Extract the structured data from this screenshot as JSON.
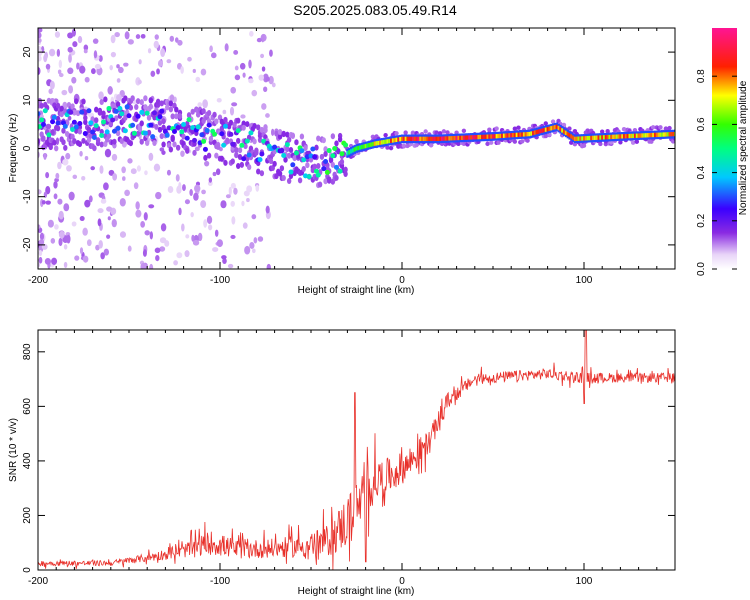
{
  "title": "S205.2025.083.05.49.R14",
  "colors": {
    "snr_line": "#e8302a",
    "axis": "#000000"
  },
  "chart_data": [
    {
      "type": "heatmap",
      "xlabel": "Height of straight line (km)",
      "ylabel": "Frequency (Hz)",
      "xlim": [
        -200,
        150
      ],
      "ylim": [
        -25,
        25
      ],
      "x_ticks": [
        -200,
        -100,
        0,
        100
      ],
      "y_ticks": [
        -20,
        -10,
        0,
        10,
        20
      ],
      "colorbar": {
        "label": "Normalized spectral amplitude",
        "range": [
          0,
          1
        ],
        "ticks": [
          "0.0",
          "0.2",
          "0.4",
          "0.6",
          "0.8"
        ],
        "tick_values": [
          0,
          0.2,
          0.4,
          0.6,
          0.8
        ],
        "colormap": "rainbow-white-purple-blue-cyan-green-yellow-red-magenta"
      },
      "ridge": [
        {
          "x": -195,
          "f": 5,
          "a": 0.35
        },
        {
          "x": -170,
          "f": 5,
          "a": 0.35
        },
        {
          "x": -150,
          "f": 6,
          "a": 0.4
        },
        {
          "x": -130,
          "f": 5,
          "a": 0.4
        },
        {
          "x": -110,
          "f": 3,
          "a": 0.4
        },
        {
          "x": -90,
          "f": 1,
          "a": 0.4
        },
        {
          "x": -70,
          "f": -1,
          "a": 0.35
        },
        {
          "x": -50,
          "f": -3,
          "a": 0.45
        },
        {
          "x": -35,
          "f": -2,
          "a": 0.45
        },
        {
          "x": -25,
          "f": 0,
          "a": 0.55
        },
        {
          "x": -15,
          "f": 1,
          "a": 0.7
        },
        {
          "x": 0,
          "f": 2,
          "a": 0.85
        },
        {
          "x": 20,
          "f": 2,
          "a": 0.9
        },
        {
          "x": 50,
          "f": 2.5,
          "a": 0.85
        },
        {
          "x": 70,
          "f": 3,
          "a": 0.8
        },
        {
          "x": 85,
          "f": 4.5,
          "a": 0.85
        },
        {
          "x": 95,
          "f": 2,
          "a": 0.75
        },
        {
          "x": 120,
          "f": 2.5,
          "a": 0.8
        },
        {
          "x": 150,
          "f": 3,
          "a": 0.75
        }
      ]
    },
    {
      "type": "line",
      "xlabel": "Height of straight line (km)",
      "ylabel": "SNR (10 * v/v)",
      "xlim": [
        -200,
        150
      ],
      "ylim": [
        0,
        880
      ],
      "x_ticks": [
        -200,
        -100,
        0,
        100
      ],
      "y_ticks": [
        0,
        200,
        400,
        600,
        800
      ],
      "envelope": [
        {
          "x": -200,
          "mean": 25,
          "spread": 20
        },
        {
          "x": -160,
          "mean": 25,
          "spread": 20
        },
        {
          "x": -140,
          "mean": 45,
          "spread": 30
        },
        {
          "x": -120,
          "mean": 70,
          "spread": 50
        },
        {
          "x": -105,
          "mean": 100,
          "spread": 90
        },
        {
          "x": -90,
          "mean": 75,
          "spread": 70
        },
        {
          "x": -70,
          "mean": 80,
          "spread": 70
        },
        {
          "x": -50,
          "mean": 90,
          "spread": 90
        },
        {
          "x": -40,
          "mean": 110,
          "spread": 120
        },
        {
          "x": -30,
          "mean": 180,
          "spread": 200
        },
        {
          "x": -22,
          "mean": 250,
          "spread": 200
        },
        {
          "x": -15,
          "mean": 330,
          "spread": 160
        },
        {
          "x": -5,
          "mean": 350,
          "spread": 120
        },
        {
          "x": 5,
          "mean": 400,
          "spread": 120
        },
        {
          "x": 15,
          "mean": 470,
          "spread": 90
        },
        {
          "x": 25,
          "mean": 620,
          "spread": 60
        },
        {
          "x": 40,
          "mean": 700,
          "spread": 40
        },
        {
          "x": 60,
          "mean": 710,
          "spread": 40
        },
        {
          "x": 80,
          "mean": 720,
          "spread": 40
        },
        {
          "x": 100,
          "mean": 705,
          "spread": 40
        },
        {
          "x": 120,
          "mean": 705,
          "spread": 35
        },
        {
          "x": 150,
          "mean": 705,
          "spread": 35
        }
      ],
      "spikes": [
        {
          "x": -26,
          "y": 650
        },
        {
          "x": -20,
          "y": 30
        },
        {
          "x": 101,
          "y": 880
        },
        {
          "x": 100,
          "y": 610
        }
      ]
    }
  ]
}
